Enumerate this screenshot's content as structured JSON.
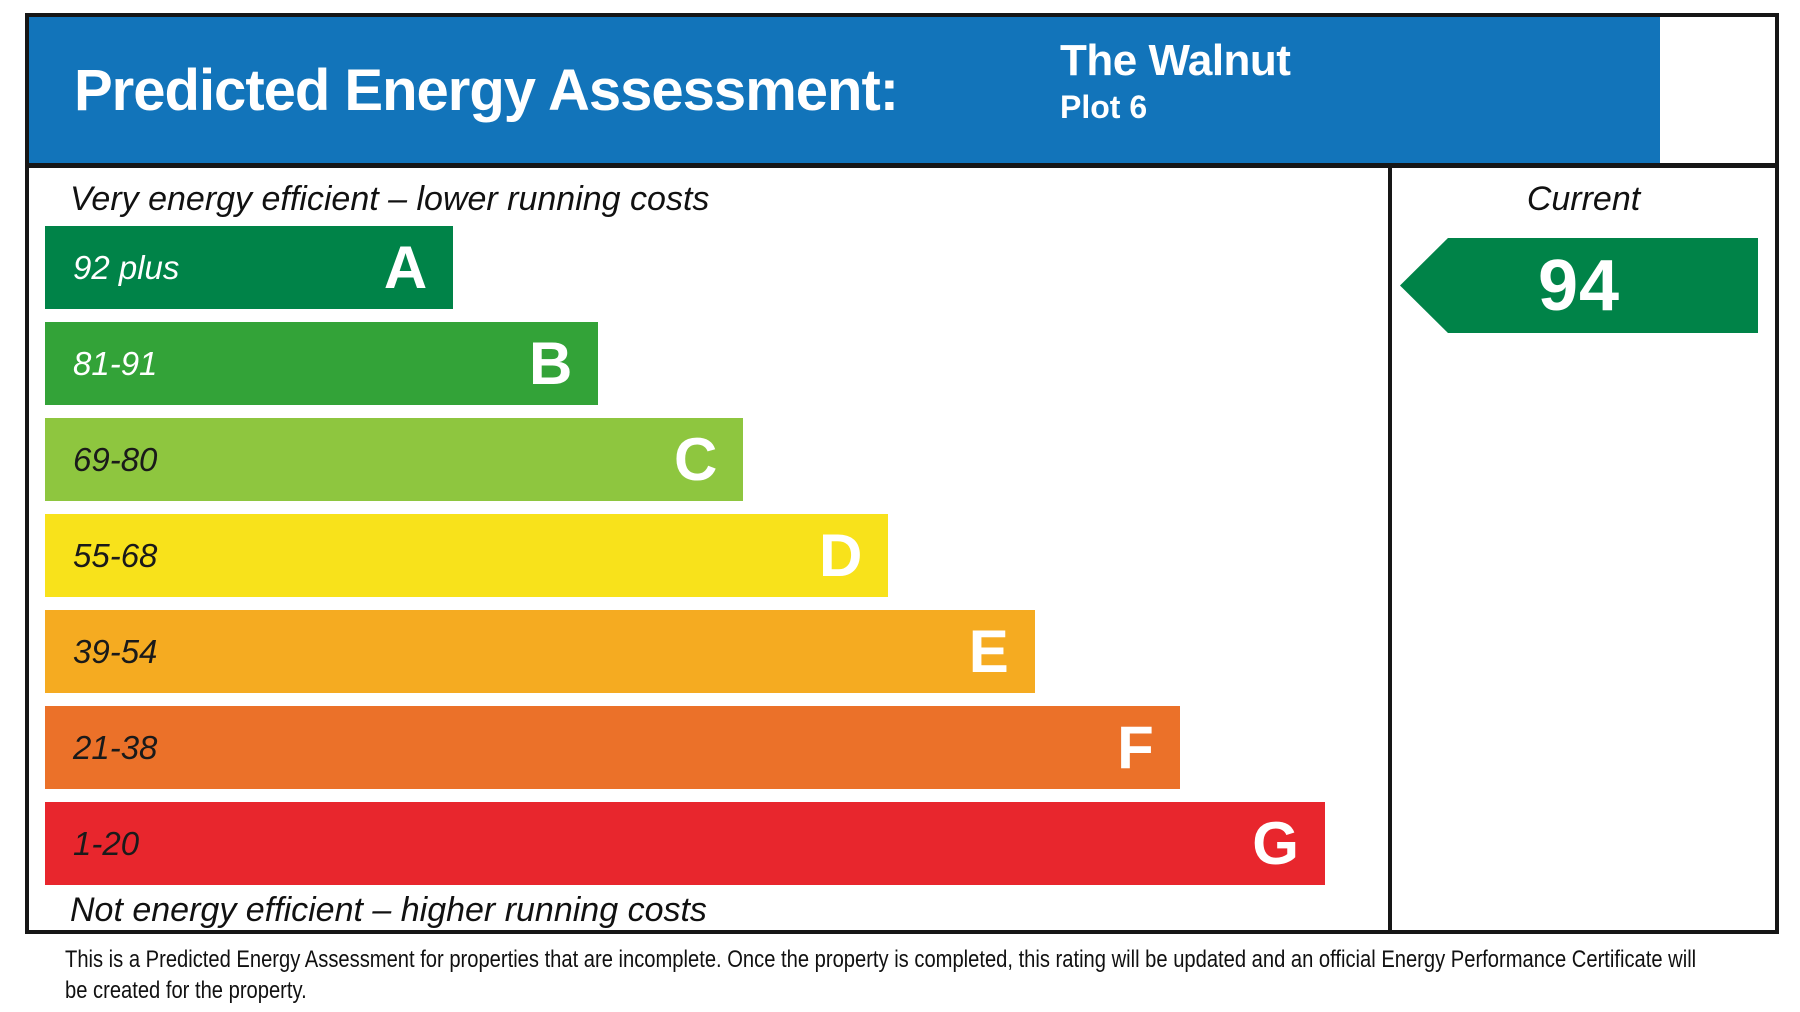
{
  "header": {
    "title": "Predicted Energy Assessment:",
    "property_name": "The Walnut",
    "plot": "Plot 6",
    "background": "#1274ba",
    "text_color": "#ffffff"
  },
  "chart": {
    "top_caption": "Very energy efficient – lower running costs",
    "bottom_caption": "Not energy efficient – higher running costs",
    "bands": [
      {
        "range": "92 plus",
        "letter": "A",
        "color": "#008348",
        "label_color": "#ffffff",
        "width_pct": 30.4
      },
      {
        "range": "81-91",
        "letter": "B",
        "color": "#33a338",
        "label_color": "#ffffff",
        "width_pct": 41.2
      },
      {
        "range": "69-80",
        "letter": "C",
        "color": "#8ec63f",
        "label_color": "#1a1a1a",
        "width_pct": 52.0
      },
      {
        "range": "55-68",
        "letter": "D",
        "color": "#f8e21b",
        "label_color": "#1a1a1a",
        "width_pct": 62.8
      },
      {
        "range": "39-54",
        "letter": "E",
        "color": "#f5ab21",
        "label_color": "#1a1a1a",
        "width_pct": 73.7
      },
      {
        "range": "21-38",
        "letter": "F",
        "color": "#eb7129",
        "label_color": "#1a1a1a",
        "width_pct": 84.5
      },
      {
        "range": "1-20",
        "letter": "G",
        "color": "#e8262d",
        "label_color": "#1a1a1a",
        "width_pct": 95.3
      }
    ]
  },
  "current": {
    "label": "Current",
    "value": "94",
    "arrow_color": "#008348"
  },
  "footnote": "This is a Predicted Energy Assessment for properties that are incomplete. Once the property is completed, this rating will be updated and an official Energy Performance Certificate will be created for the property.",
  "chart_data": {
    "type": "bar",
    "orientation": "horizontal",
    "title": "Predicted Energy Assessment: The Walnut Plot 6",
    "categories": [
      "A",
      "B",
      "C",
      "D",
      "E",
      "F",
      "G"
    ],
    "band_score_ranges": [
      "92 plus",
      "81-91",
      "69-80",
      "55-68",
      "39-54",
      "21-38",
      "1-20"
    ],
    "band_colors": [
      "#008348",
      "#33a338",
      "#8ec63f",
      "#f8e21b",
      "#f5ab21",
      "#eb7129",
      "#e8262d"
    ],
    "bar_relative_widths_pct": [
      30.4,
      41.2,
      52.0,
      62.8,
      73.7,
      84.5,
      95.3
    ],
    "current_rating": 94,
    "current_band": "A",
    "annotations": [
      "Very energy efficient – lower running costs",
      "Not energy efficient – higher running costs",
      "Current"
    ],
    "legend_position": "none",
    "grid": false
  }
}
